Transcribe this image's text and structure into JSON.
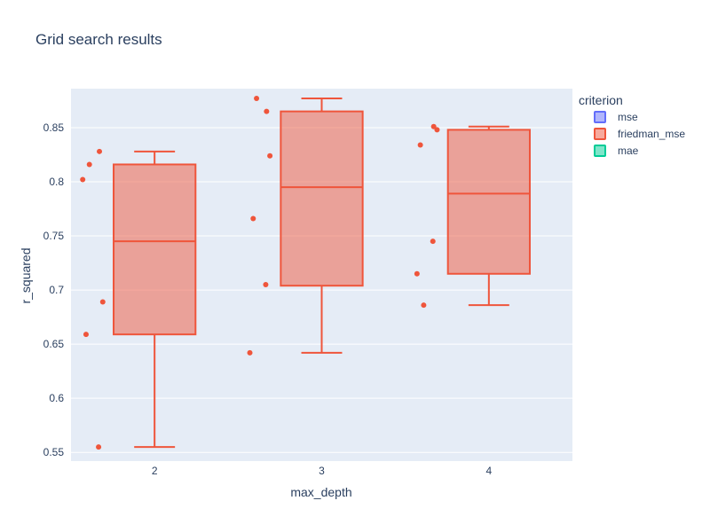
{
  "chart_data": {
    "type": "box",
    "title": "Grid search results",
    "xlabel": "max_depth",
    "ylabel": "r_squared",
    "categories": [
      "2",
      "3",
      "4"
    ],
    "ylim": [
      0.542,
      0.886
    ],
    "yticks": [
      0.55,
      0.6,
      0.65,
      0.7,
      0.75,
      0.8,
      0.85
    ],
    "ytick_labels": [
      "0.55",
      "0.6",
      "0.65",
      "0.7",
      "0.75",
      "0.8",
      "0.85"
    ],
    "grid": true,
    "legend": {
      "title": "criterion",
      "placement": "right",
      "entries": [
        {
          "name": "mse",
          "color": "#636efa"
        },
        {
          "name": "friedman_mse",
          "color": "#ef553b"
        },
        {
          "name": "mae",
          "color": "#00cc96"
        }
      ]
    },
    "series": [
      {
        "name": "friedman_mse",
        "color": "#ef553b",
        "boxes": [
          {
            "category": "2",
            "min": 0.555,
            "q1": 0.659,
            "median": 0.745,
            "q3": 0.816,
            "max": 0.828,
            "points": [
              0.802,
              0.816,
              0.828,
              0.689,
              0.659,
              0.555
            ]
          },
          {
            "category": "3",
            "min": 0.642,
            "q1": 0.704,
            "median": 0.795,
            "q3": 0.865,
            "max": 0.877,
            "points": [
              0.877,
              0.865,
              0.824,
              0.766,
              0.705,
              0.642
            ]
          },
          {
            "category": "4",
            "min": 0.686,
            "q1": 0.715,
            "median": 0.789,
            "q3": 0.848,
            "max": 0.851,
            "points": [
              0.851,
              0.848,
              0.834,
              0.745,
              0.715,
              0.686
            ]
          }
        ]
      }
    ]
  }
}
